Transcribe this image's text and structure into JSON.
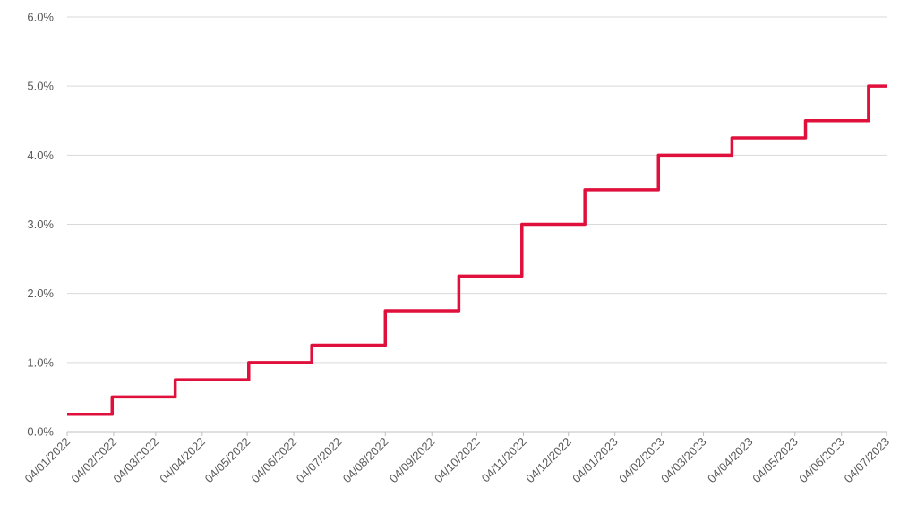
{
  "chart_data": {
    "type": "line",
    "step": true,
    "title": "",
    "xlabel": "",
    "ylabel": "",
    "x_axis": {
      "type": "date",
      "range": [
        "2022-01-04",
        "2023-07-04"
      ],
      "tick_dates": [
        "2022-01-04",
        "2022-02-04",
        "2022-03-04",
        "2022-04-04",
        "2022-05-04",
        "2022-06-04",
        "2022-07-04",
        "2022-08-04",
        "2022-09-04",
        "2022-10-04",
        "2022-11-04",
        "2022-12-04",
        "2023-01-04",
        "2023-02-04",
        "2023-03-04",
        "2023-04-04",
        "2023-05-04",
        "2023-06-04",
        "2023-07-04"
      ],
      "tick_labels": [
        "04/01/2022",
        "04/02/2022",
        "04/03/2022",
        "04/04/2022",
        "04/05/2022",
        "04/06/2022",
        "04/07/2022",
        "04/08/2022",
        "04/09/2022",
        "04/10/2022",
        "04/11/2022",
        "04/12/2022",
        "04/01/2023",
        "04/02/2023",
        "04/03/2023",
        "04/04/2023",
        "04/05/2023",
        "04/06/2023",
        "04/07/2023"
      ]
    },
    "y_axis": {
      "range": [
        0,
        6
      ],
      "unit": "%",
      "ticks": [
        0,
        1,
        2,
        3,
        4,
        5,
        6
      ],
      "tick_labels": [
        "0.0%",
        "1.0%",
        "2.0%",
        "3.0%",
        "4.0%",
        "5.0%",
        "6.0%"
      ]
    },
    "grid": true,
    "legend": "none",
    "series": [
      {
        "color": "#e0103c",
        "points": [
          {
            "date": "2022-01-04",
            "value": 0.25
          },
          {
            "date": "2022-02-03",
            "value": 0.5
          },
          {
            "date": "2022-03-17",
            "value": 0.75
          },
          {
            "date": "2022-05-05",
            "value": 1.0
          },
          {
            "date": "2022-06-16",
            "value": 1.25
          },
          {
            "date": "2022-08-04",
            "value": 1.75
          },
          {
            "date": "2022-09-22",
            "value": 2.25
          },
          {
            "date": "2022-11-03",
            "value": 3.0
          },
          {
            "date": "2022-12-15",
            "value": 3.5
          },
          {
            "date": "2023-02-02",
            "value": 4.0
          },
          {
            "date": "2023-03-23",
            "value": 4.25
          },
          {
            "date": "2023-05-11",
            "value": 4.5
          },
          {
            "date": "2023-06-22",
            "value": 5.0
          }
        ]
      }
    ]
  }
}
